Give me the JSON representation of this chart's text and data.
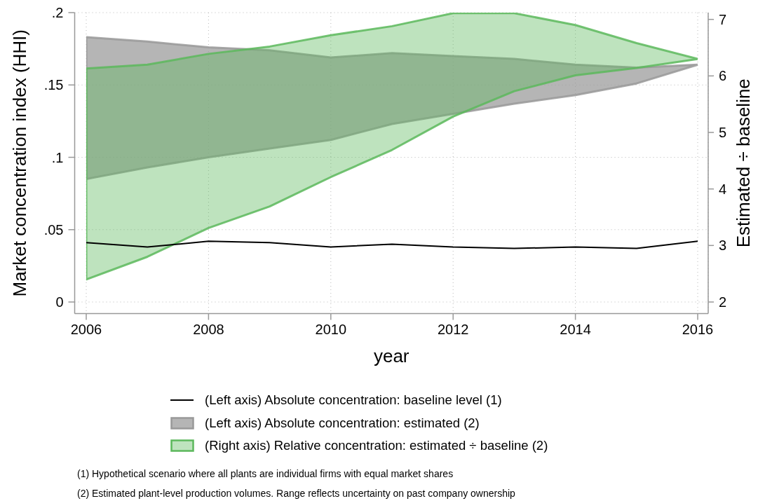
{
  "chart_data": {
    "type": "line",
    "xlabel": "year",
    "ylabel": "Market concentration index (HHI)",
    "y2label": "Estimated ÷ baseline",
    "x": [
      2006,
      2007,
      2008,
      2009,
      2010,
      2011,
      2012,
      2013,
      2014,
      2015,
      2016
    ],
    "xlim": [
      2006,
      2016
    ],
    "xticks": [
      2006,
      2008,
      2010,
      2012,
      2014,
      2016
    ],
    "ylim": [
      0,
      0.2
    ],
    "yticks": [
      0,
      {
        "value": 0.05,
        "label": ".05"
      },
      {
        "value": 0.1,
        "label": ".1"
      },
      {
        "value": 0.15,
        "label": ".15"
      },
      {
        "value": 0.2,
        "label": ".2"
      }
    ],
    "y2lim": [
      2,
      7.12
    ],
    "y2ticks": [
      2,
      3,
      4,
      5,
      6,
      7
    ],
    "grid": true,
    "legend": "bottom",
    "marker": "none",
    "series": [
      {
        "name": "(Left axis) Absolute concentration: baseline level (1)",
        "type": "line",
        "color": "#000000",
        "values": [
          0.041,
          0.038,
          0.042,
          0.041,
          0.038,
          0.04,
          0.038,
          0.037,
          0.038,
          0.037,
          0.042
        ]
      },
      {
        "name": "(Left axis) Absolute concentration: estimated (2)",
        "type": "area",
        "color": "#999999",
        "values": [
          null,
          null,
          null,
          null,
          null,
          null,
          null,
          null,
          null,
          null,
          null
        ],
        "lower": [
          0.085,
          0.093,
          0.1,
          0.106,
          0.112,
          0.123,
          0.13,
          0.137,
          0.143,
          0.151,
          0.164
        ],
        "upper": [
          0.183,
          0.18,
          0.176,
          0.174,
          0.169,
          0.172,
          0.17,
          0.168,
          0.164,
          0.162,
          0.164
        ]
      },
      {
        "name": "(Right axis) Relative concentration: estimated ÷ baseline (2)",
        "type": "area",
        "color": "#5cb85c",
        "axis": "y2",
        "values": [
          null,
          null,
          null,
          null,
          null,
          null,
          null,
          null,
          null,
          null,
          null
        ],
        "lower": [
          2.4,
          2.8,
          3.31,
          3.69,
          4.21,
          4.69,
          5.28,
          5.73,
          6.01,
          6.14,
          6.3
        ],
        "upper": [
          6.13,
          6.2,
          6.39,
          6.52,
          6.72,
          6.88,
          7.11,
          7.11,
          6.9,
          6.58,
          6.3
        ]
      }
    ],
    "annotations": [
      "(1) Hypothetical scenario where all plants are individual firms with equal market shares",
      "(2) Estimated plant-level production volumes. Range reflects uncertainty on past company ownership"
    ]
  }
}
